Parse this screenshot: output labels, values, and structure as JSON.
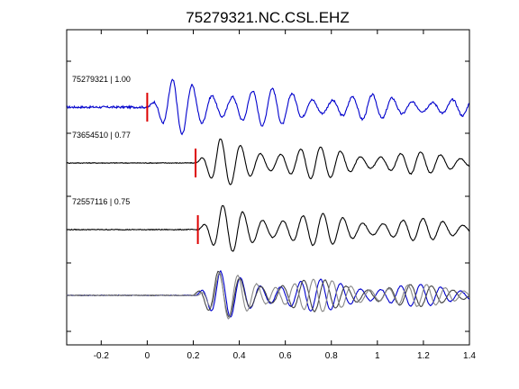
{
  "chart_data": {
    "type": "line",
    "title": "75279321.NC.CSL.EHZ",
    "xlabel": "",
    "ylabel": "",
    "xlim": [
      -0.35,
      1.4
    ],
    "x_ticks": [
      -0.2,
      0,
      0.2,
      0.4,
      0.6,
      0.8,
      1,
      1.2,
      1.4
    ],
    "x_tick_labels": [
      "-0.2",
      "0",
      "0.2",
      "0.4",
      "0.6",
      "0.8",
      "1",
      "1.2",
      "1.4"
    ],
    "grid": false,
    "traces": [
      {
        "label": "75279321 | 1.00",
        "color": "#0000cc",
        "offset": 3,
        "pick_time": 0.0,
        "amplitude": 0.55,
        "onset": 0.0,
        "freq": 11.5,
        "decay": 1.4,
        "peak_lag": 0.12,
        "noise": 0.04
      },
      {
        "label": "73654510 | 0.77",
        "color": "#000000",
        "offset": 2,
        "pick_time": 0.21,
        "amplitude": 0.45,
        "onset": 0.21,
        "freq": 11.5,
        "decay": 1.2,
        "peak_lag": 0.1,
        "noise": 0.015
      },
      {
        "label": "72557116 | 0.75",
        "color": "#000000",
        "offset": 1,
        "pick_time": 0.22,
        "amplitude": 0.45,
        "onset": 0.22,
        "freq": 11.5,
        "decay": 1.2,
        "peak_lag": 0.1,
        "noise": 0.015
      }
    ],
    "overlay": {
      "offset": 0,
      "amplitude": 0.45,
      "series": [
        {
          "color": "#0000cc",
          "onset": 0.21,
          "freq": 11.5
        },
        {
          "color": "#444444",
          "onset": 0.2,
          "freq": 10.8
        },
        {
          "color": "#888888",
          "onset": 0.22,
          "freq": 12.2
        }
      ]
    },
    "pick_color": "#dd0000"
  }
}
